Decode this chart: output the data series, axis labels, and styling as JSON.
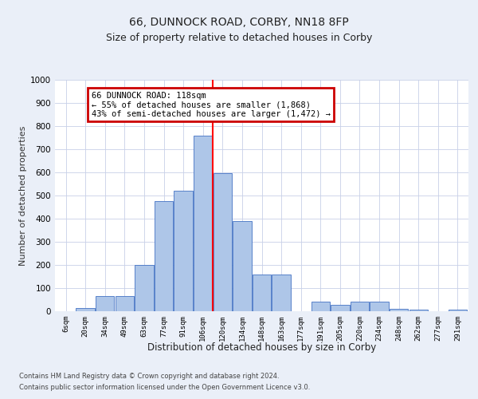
{
  "title": "66, DUNNOCK ROAD, CORBY, NN18 8FP",
  "subtitle": "Size of property relative to detached houses in Corby",
  "xlabel": "Distribution of detached houses by size in Corby",
  "ylabel": "Number of detached properties",
  "footer_line1": "Contains HM Land Registry data © Crown copyright and database right 2024.",
  "footer_line2": "Contains public sector information licensed under the Open Government Licence v3.0.",
  "annotation_title": "66 DUNNOCK ROAD: 118sqm",
  "annotation_line1": "← 55% of detached houses are smaller (1,868)",
  "annotation_line2": "43% of semi-detached houses are larger (1,472) →",
  "bar_labels": [
    "6sqm",
    "20sqm",
    "34sqm",
    "49sqm",
    "63sqm",
    "77sqm",
    "91sqm",
    "106sqm",
    "120sqm",
    "134sqm",
    "148sqm",
    "163sqm",
    "177sqm",
    "191sqm",
    "205sqm",
    "220sqm",
    "234sqm",
    "248sqm",
    "262sqm",
    "277sqm",
    "291sqm"
  ],
  "bar_values": [
    0,
    14,
    65,
    65,
    200,
    475,
    520,
    760,
    595,
    390,
    160,
    160,
    0,
    40,
    27,
    43,
    43,
    12,
    7,
    0,
    7
  ],
  "bar_color": "#aec6e8",
  "bar_edge_color": "#4472c4",
  "vline_color": "red",
  "ylim": [
    0,
    1000
  ],
  "yticks": [
    0,
    100,
    200,
    300,
    400,
    500,
    600,
    700,
    800,
    900,
    1000
  ],
  "bg_color": "#eaeff8",
  "plot_bg_color": "#ffffff",
  "grid_color": "#c8d0e8",
  "title_fontsize": 10,
  "subtitle_fontsize": 9,
  "annotation_box_color": "#cc0000"
}
